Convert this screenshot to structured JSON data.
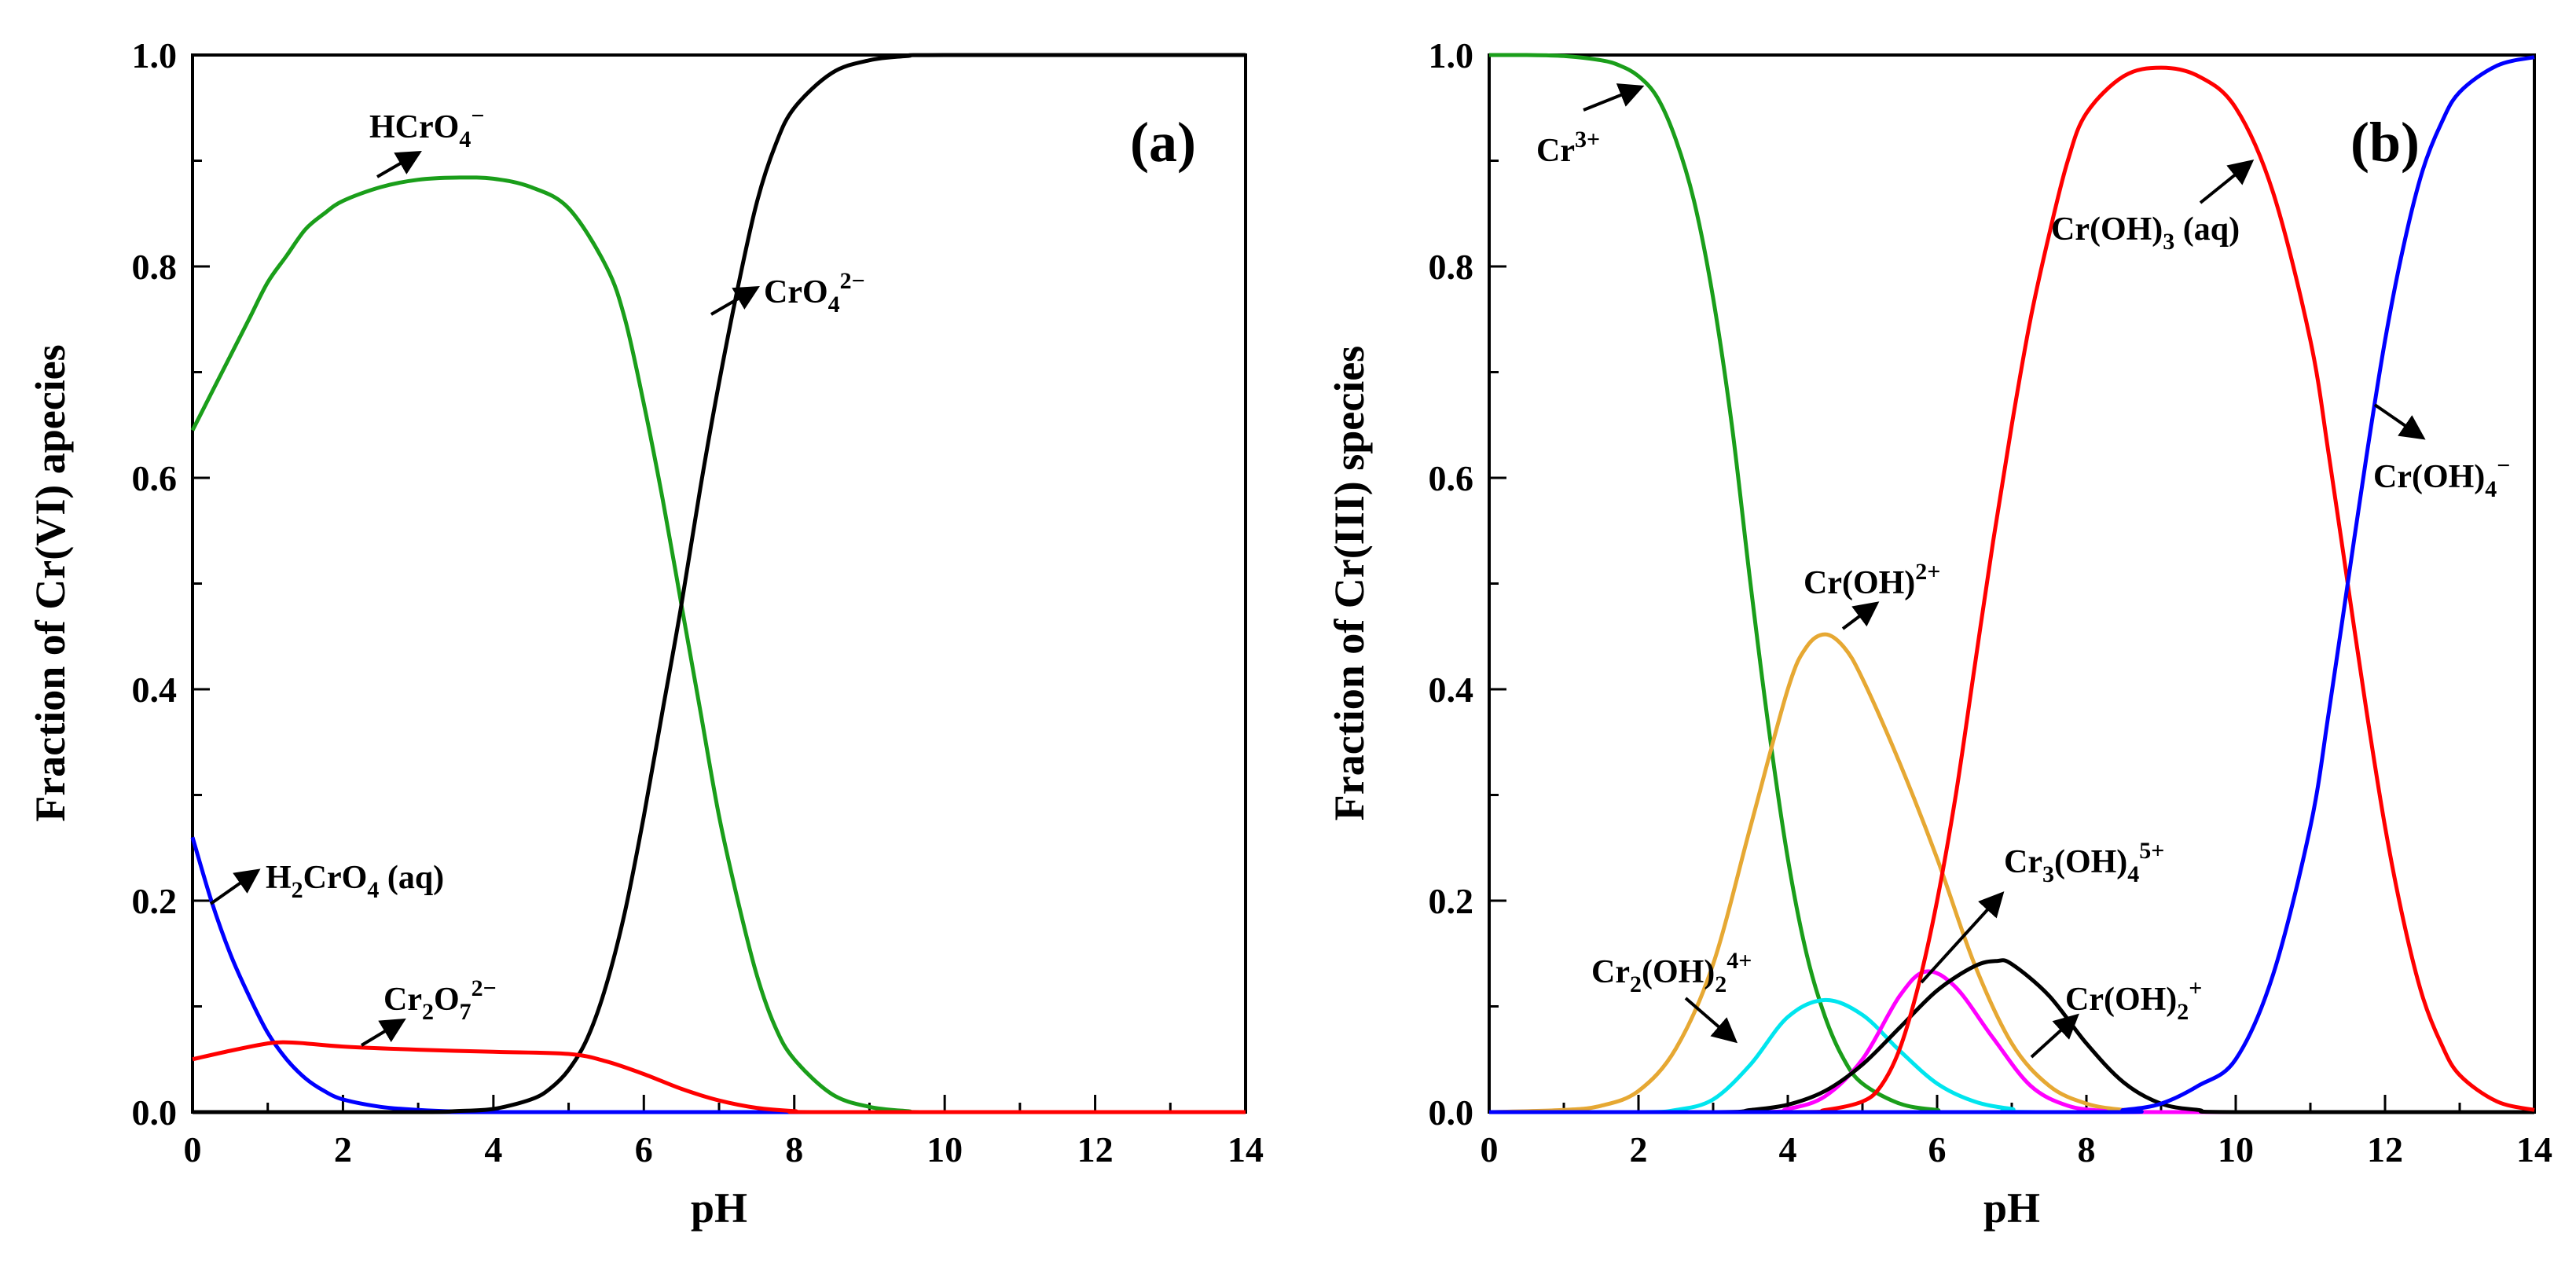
{
  "chart_data": [
    {
      "type": "line",
      "panel_label": "(a)",
      "xlabel": "pH",
      "ylabel": "Fraction of Cr(VI) apecies",
      "xlim": [
        0,
        14
      ],
      "ylim": [
        0,
        1.0
      ],
      "xticks": [
        "0",
        "2",
        "4",
        "6",
        "8",
        "10",
        "12",
        "14"
      ],
      "yticks": [
        "0.0",
        "0.2",
        "0.4",
        "0.6",
        "0.8",
        "1.0"
      ],
      "grid": false,
      "series": [
        {
          "name": "H2CrO4 (aq)",
          "color": "#0000ff",
          "points": [
            [
              0,
              0.26
            ],
            [
              0.25,
              0.2
            ],
            [
              0.5,
              0.15
            ],
            [
              0.75,
              0.11
            ],
            [
              1,
              0.075
            ],
            [
              1.25,
              0.05
            ],
            [
              1.5,
              0.032
            ],
            [
              1.75,
              0.02
            ],
            [
              2,
              0.012
            ],
            [
              2.5,
              0.005
            ],
            [
              3,
              0.002
            ],
            [
              3.5,
              0.0005
            ],
            [
              4,
              0
            ],
            [
              14,
              0
            ]
          ]
        },
        {
          "name": "HCrO4-",
          "color": "#1a9e1a",
          "points": [
            [
              0,
              0.645
            ],
            [
              0.25,
              0.68
            ],
            [
              0.5,
              0.715
            ],
            [
              0.75,
              0.75
            ],
            [
              1,
              0.785
            ],
            [
              1.25,
              0.81
            ],
            [
              1.5,
              0.835
            ],
            [
              1.75,
              0.85
            ],
            [
              2,
              0.862
            ],
            [
              2.5,
              0.875
            ],
            [
              3,
              0.882
            ],
            [
              3.5,
              0.884
            ],
            [
              4,
              0.883
            ],
            [
              4.5,
              0.875
            ],
            [
              5,
              0.855
            ],
            [
              5.5,
              0.8
            ],
            [
              5.75,
              0.75
            ],
            [
              6,
              0.67
            ],
            [
              6.25,
              0.58
            ],
            [
              6.5,
              0.48
            ],
            [
              6.75,
              0.38
            ],
            [
              7,
              0.28
            ],
            [
              7.25,
              0.2
            ],
            [
              7.5,
              0.13
            ],
            [
              7.75,
              0.08
            ],
            [
              8,
              0.05
            ],
            [
              8.5,
              0.017
            ],
            [
              9,
              0.005
            ],
            [
              9.5,
              0.001
            ],
            [
              10,
              0
            ],
            [
              14,
              0
            ]
          ]
        },
        {
          "name": "CrO4 2-",
          "color": "#000000",
          "points": [
            [
              0,
              0
            ],
            [
              3,
              0
            ],
            [
              3.5,
              0.001
            ],
            [
              4,
              0.003
            ],
            [
              4.5,
              0.012
            ],
            [
              4.75,
              0.022
            ],
            [
              5,
              0.04
            ],
            [
              5.25,
              0.07
            ],
            [
              5.5,
              0.12
            ],
            [
              5.75,
              0.19
            ],
            [
              6,
              0.28
            ],
            [
              6.25,
              0.38
            ],
            [
              6.5,
              0.48
            ],
            [
              6.75,
              0.59
            ],
            [
              7,
              0.69
            ],
            [
              7.25,
              0.78
            ],
            [
              7.5,
              0.86
            ],
            [
              7.75,
              0.915
            ],
            [
              8,
              0.95
            ],
            [
              8.5,
              0.983
            ],
            [
              9,
              0.995
            ],
            [
              9.5,
              0.999
            ],
            [
              10,
              1.0
            ],
            [
              14,
              1.0
            ]
          ]
        },
        {
          "name": "Cr2O7 2-",
          "color": "#ff0000",
          "points": [
            [
              0,
              0.05
            ],
            [
              0.5,
              0.058
            ],
            [
              1,
              0.065
            ],
            [
              1.25,
              0.066
            ],
            [
              1.5,
              0.065
            ],
            [
              2,
              0.062
            ],
            [
              3,
              0.059
            ],
            [
              4,
              0.057
            ],
            [
              5,
              0.055
            ],
            [
              5.5,
              0.048
            ],
            [
              6,
              0.036
            ],
            [
              6.5,
              0.022
            ],
            [
              7,
              0.011
            ],
            [
              7.5,
              0.004
            ],
            [
              8,
              0.001
            ],
            [
              8.5,
              0
            ],
            [
              14,
              0
            ]
          ]
        }
      ],
      "annotations": [
        {
          "id": "hcro4",
          "text": "HCrO4⁻"
        },
        {
          "id": "cro4",
          "text": "CrO4²⁻"
        },
        {
          "id": "h2cro4",
          "text": "H2CrO4 (aq)"
        },
        {
          "id": "cr2o7",
          "text": "Cr2O7²⁻"
        }
      ]
    },
    {
      "type": "line",
      "panel_label": "(b)",
      "xlabel": "pH",
      "ylabel": "Fraction of Cr(III) species",
      "xlim": [
        0,
        14
      ],
      "ylim": [
        0,
        1.0
      ],
      "xticks": [
        "0",
        "2",
        "4",
        "6",
        "8",
        "10",
        "12",
        "14"
      ],
      "yticks": [
        "0.0",
        "0.2",
        "0.4",
        "0.6",
        "0.8",
        "1.0"
      ],
      "grid": false,
      "series": [
        {
          "name": "Cr3+",
          "color": "#1a9e1a",
          "points": [
            [
              0,
              1.0
            ],
            [
              0.5,
              1.0
            ],
            [
              1,
              0.999
            ],
            [
              1.5,
              0.995
            ],
            [
              1.75,
              0.99
            ],
            [
              2,
              0.98
            ],
            [
              2.25,
              0.96
            ],
            [
              2.5,
              0.92
            ],
            [
              2.75,
              0.86
            ],
            [
              3,
              0.77
            ],
            [
              3.25,
              0.65
            ],
            [
              3.5,
              0.5
            ],
            [
              3.75,
              0.36
            ],
            [
              4,
              0.24
            ],
            [
              4.25,
              0.15
            ],
            [
              4.5,
              0.09
            ],
            [
              4.75,
              0.05
            ],
            [
              5,
              0.027
            ],
            [
              5.5,
              0.008
            ],
            [
              6,
              0.002
            ],
            [
              6.5,
              0
            ],
            [
              14,
              0
            ]
          ]
        },
        {
          "name": "Cr(OH)2+",
          "color": "#e6a833",
          "points": [
            [
              0,
              0
            ],
            [
              1,
              0.002
            ],
            [
              1.5,
              0.006
            ],
            [
              2,
              0.02
            ],
            [
              2.5,
              0.06
            ],
            [
              3,
              0.14
            ],
            [
              3.5,
              0.27
            ],
            [
              4,
              0.4
            ],
            [
              4.25,
              0.44
            ],
            [
              4.5,
              0.452
            ],
            [
              4.75,
              0.44
            ],
            [
              5,
              0.41
            ],
            [
              5.5,
              0.33
            ],
            [
              6,
              0.24
            ],
            [
              6.5,
              0.14
            ],
            [
              7,
              0.065
            ],
            [
              7.5,
              0.025
            ],
            [
              8,
              0.008
            ],
            [
              8.5,
              0.002
            ],
            [
              9,
              0
            ],
            [
              14,
              0
            ]
          ]
        },
        {
          "name": "Cr2(OH)2 4+",
          "color": "#00e5ee",
          "points": [
            [
              0,
              0
            ],
            [
              2,
              0
            ],
            [
              2.5,
              0.002
            ],
            [
              3,
              0.012
            ],
            [
              3.5,
              0.045
            ],
            [
              4,
              0.09
            ],
            [
              4.5,
              0.106
            ],
            [
              5,
              0.092
            ],
            [
              5.5,
              0.058
            ],
            [
              6,
              0.027
            ],
            [
              6.5,
              0.01
            ],
            [
              7,
              0.003
            ],
            [
              7.5,
              0
            ],
            [
              14,
              0
            ]
          ]
        },
        {
          "name": "Cr3(OH)4 5+",
          "color": "#ff00ff",
          "points": [
            [
              0,
              0
            ],
            [
              3.5,
              0
            ],
            [
              4,
              0.003
            ],
            [
              4.5,
              0.015
            ],
            [
              5,
              0.05
            ],
            [
              5.5,
              0.11
            ],
            [
              5.85,
              0.133
            ],
            [
              6.25,
              0.118
            ],
            [
              6.75,
              0.07
            ],
            [
              7.25,
              0.025
            ],
            [
              7.75,
              0.006
            ],
            [
              8.25,
              0.001
            ],
            [
              8.5,
              0
            ],
            [
              14,
              0
            ]
          ]
        },
        {
          "name": "Cr(OH)2 +",
          "color": "#000000",
          "points": [
            [
              0,
              0
            ],
            [
              3,
              0
            ],
            [
              3.5,
              0.002
            ],
            [
              4,
              0.007
            ],
            [
              4.5,
              0.02
            ],
            [
              5,
              0.045
            ],
            [
              5.5,
              0.08
            ],
            [
              6,
              0.115
            ],
            [
              6.5,
              0.138
            ],
            [
              6.8,
              0.143
            ],
            [
              7,
              0.14
            ],
            [
              7.5,
              0.11
            ],
            [
              8,
              0.065
            ],
            [
              8.5,
              0.028
            ],
            [
              9,
              0.008
            ],
            [
              9.5,
              0.002
            ],
            [
              10,
              0
            ],
            [
              14,
              0
            ]
          ]
        },
        {
          "name": "Cr(OH)3 (aq)",
          "color": "#ff0000",
          "points": [
            [
              0,
              0
            ],
            [
              4,
              0
            ],
            [
              4.5,
              0.002
            ],
            [
              5,
              0.01
            ],
            [
              5.25,
              0.025
            ],
            [
              5.5,
              0.06
            ],
            [
              5.75,
              0.12
            ],
            [
              6,
              0.2
            ],
            [
              6.25,
              0.3
            ],
            [
              6.5,
              0.42
            ],
            [
              6.75,
              0.54
            ],
            [
              7,
              0.65
            ],
            [
              7.25,
              0.75
            ],
            [
              7.5,
              0.83
            ],
            [
              7.75,
              0.9
            ],
            [
              8,
              0.945
            ],
            [
              8.5,
              0.98
            ],
            [
              9,
              0.988
            ],
            [
              9.5,
              0.98
            ],
            [
              10,
              0.95
            ],
            [
              10.5,
              0.87
            ],
            [
              11,
              0.73
            ],
            [
              11.25,
              0.62
            ],
            [
              11.5,
              0.5
            ],
            [
              11.75,
              0.38
            ],
            [
              12,
              0.27
            ],
            [
              12.25,
              0.18
            ],
            [
              12.5,
              0.11
            ],
            [
              12.75,
              0.065
            ],
            [
              13,
              0.035
            ],
            [
              13.5,
              0.01
            ],
            [
              14,
              0.002
            ]
          ]
        },
        {
          "name": "Cr(OH)4-",
          "color": "#0000ff",
          "points": [
            [
              0,
              0
            ],
            [
              8,
              0
            ],
            [
              8.5,
              0.002
            ],
            [
              9,
              0.008
            ],
            [
              9.5,
              0.025
            ],
            [
              10,
              0.05
            ],
            [
              10.5,
              0.13
            ],
            [
              11,
              0.27
            ],
            [
              11.25,
              0.38
            ],
            [
              11.5,
              0.5
            ],
            [
              11.75,
              0.62
            ],
            [
              12,
              0.73
            ],
            [
              12.25,
              0.82
            ],
            [
              12.5,
              0.89
            ],
            [
              12.75,
              0.935
            ],
            [
              13,
              0.965
            ],
            [
              13.5,
              0.99
            ],
            [
              14,
              0.998
            ]
          ]
        }
      ],
      "annotations": [
        {
          "id": "cr3",
          "text": "Cr³⁺"
        },
        {
          "id": "croh",
          "text": "Cr(OH)²⁺"
        },
        {
          "id": "croh3",
          "text": "Cr(OH)3 (aq)"
        },
        {
          "id": "croh4",
          "text": "Cr(OH)4⁻"
        },
        {
          "id": "cr3oh4",
          "text": "Cr3(OH)4⁵⁺"
        },
        {
          "id": "cr2oh2",
          "text": "Cr2(OH)2⁴⁺"
        },
        {
          "id": "croh2",
          "text": "Cr(OH)2⁺"
        }
      ]
    }
  ]
}
